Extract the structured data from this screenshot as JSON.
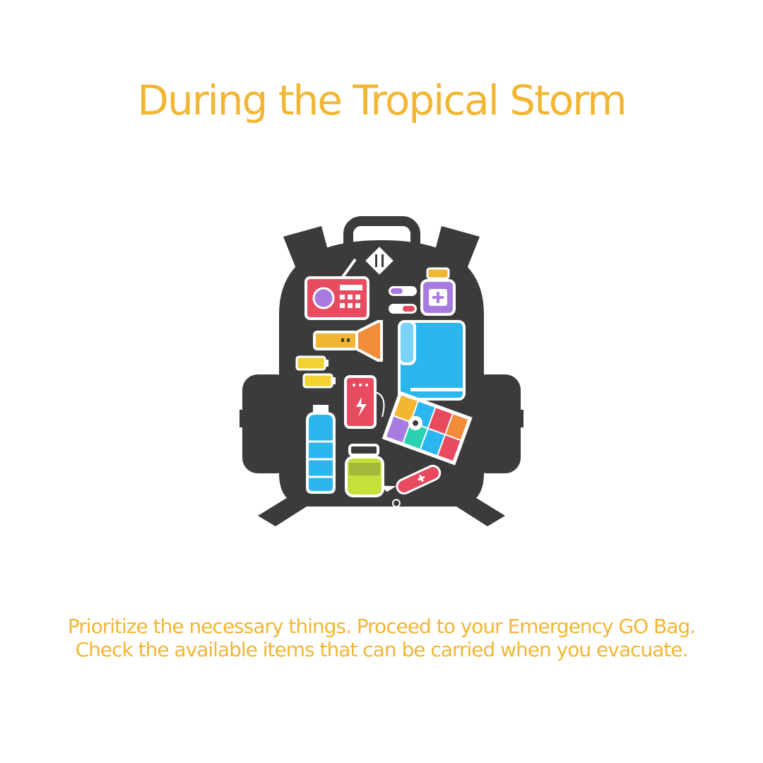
{
  "slide": {
    "title": "During the Tropical Storm",
    "caption": "Prioritize the necessary things. Proceed to your Emergency GO Bag. Check the available items that can be carried when you evacuate."
  },
  "colors": {
    "accent": "#F2B632",
    "bag": "#3B3B3B",
    "background": "#FFFFFF"
  },
  "illustration": {
    "icon": "backpack-icon",
    "items": [
      "radio-icon",
      "pills-icon",
      "medicine-bottle-icon",
      "flashlight-icon",
      "towel-icon",
      "battery-icon",
      "power-bank-icon",
      "map-icon",
      "water-bottle-icon",
      "jar-icon",
      "pocket-knife-icon"
    ]
  }
}
